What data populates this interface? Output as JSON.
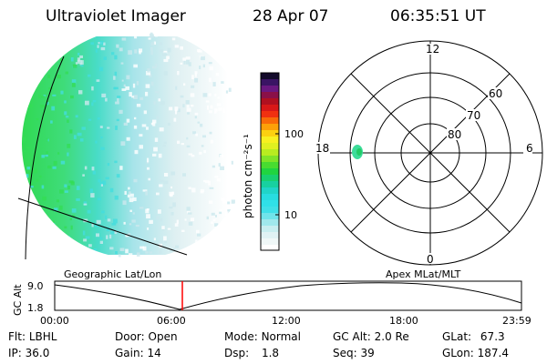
{
  "header": {
    "title": "Ultraviolet Imager",
    "date": "28 Apr 07",
    "time": "06:35:51 UT"
  },
  "colorbar": {
    "unit_label": "photon cm⁻²s⁻¹",
    "ticks": [
      "100",
      "10"
    ],
    "scale": "log"
  },
  "polar_plot": {
    "mlt_labels": [
      "12",
      "18",
      "6",
      "0"
    ],
    "mlat_labels": [
      "60",
      "70",
      "80"
    ]
  },
  "timeline": {
    "left_title": "Geographic Lat/Lon",
    "right_title": "Apex  MLat/MLT",
    "y_axis_label": "GC Alt",
    "y_ticks": [
      "9.0",
      "1.8"
    ],
    "x_ticks": [
      "00:00",
      "06:00",
      "12:00",
      "18:00",
      "23:59"
    ],
    "marker_time": "06:35:51",
    "marker_color": "#ff0000"
  },
  "status": {
    "flt": {
      "label": "Flt:",
      "value": "LBHL"
    },
    "ip": {
      "label": "IP:",
      "value": "36.0"
    },
    "door": {
      "label": "Door:",
      "value": "Open"
    },
    "gain": {
      "label": "Gain:",
      "value": "14"
    },
    "mode": {
      "label": "Mode:",
      "value": "Normal"
    },
    "dsp": {
      "label": "Dsp:",
      "value": "1.8"
    },
    "gc_alt": {
      "label": "GC Alt:",
      "value": "2.0 Re"
    },
    "seq": {
      "label": "Seq:",
      "value": "39"
    },
    "glat": {
      "label": "GLat:",
      "value": "67.3"
    },
    "glon": {
      "label": "GLon:",
      "value": "187.4"
    }
  },
  "colors": {
    "image_green": "#33dd55",
    "image_cyan": "#44dddd",
    "image_pale": "#cce8ee"
  }
}
